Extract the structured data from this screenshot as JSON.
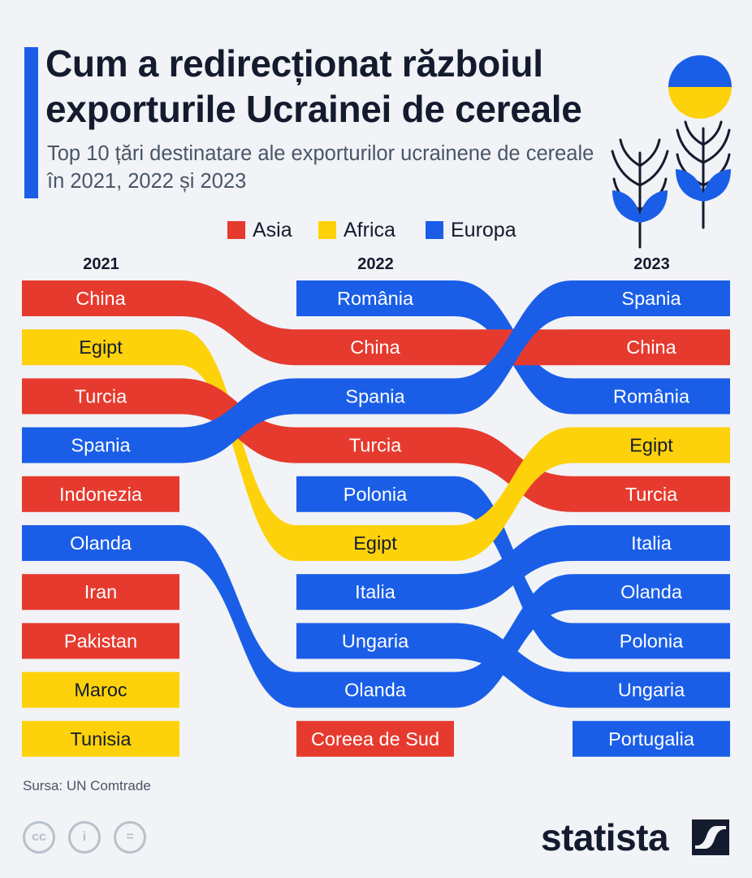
{
  "header": {
    "title": "Cum a redirecționat războiul exporturile Ucrainei de cereale",
    "subtitle": "Top 10 țări destinatare ale exporturilor ucrainene de cereale în 2021, 2022 și 2023"
  },
  "legend": [
    {
      "label": "Asia",
      "color": "#e63a2e"
    },
    {
      "label": "Africa",
      "color": "#fdd20a"
    },
    {
      "label": "Europa",
      "color": "#1a5ee8"
    }
  ],
  "chart_data": {
    "type": "bump",
    "years": [
      "2021",
      "2022",
      "2023"
    ],
    "region_colors": {
      "Asia": "#e63a2e",
      "Africa": "#fdd20a",
      "Europa": "#1a5ee8"
    },
    "rankings": {
      "2021": [
        "China",
        "Egipt",
        "Turcia",
        "Spania",
        "Indonezia",
        "Olanda",
        "Iran",
        "Pakistan",
        "Maroc",
        "Tunisia"
      ],
      "2022": [
        "România",
        "China",
        "Spania",
        "Turcia",
        "Polonia",
        "Egipt",
        "Italia",
        "Ungaria",
        "Olanda",
        "Coreea de Sud"
      ],
      "2023": [
        "Spania",
        "China",
        "România",
        "Egipt",
        "Turcia",
        "Italia",
        "Olanda",
        "Polonia",
        "Ungaria",
        "Portugalia"
      ]
    },
    "regions": {
      "China": "Asia",
      "Turcia": "Asia",
      "Indonezia": "Asia",
      "Iran": "Asia",
      "Pakistan": "Asia",
      "Coreea de Sud": "Asia",
      "Egipt": "Africa",
      "Maroc": "Africa",
      "Tunisia": "Africa",
      "Spania": "Europa",
      "Olanda": "Europa",
      "România": "Europa",
      "Polonia": "Europa",
      "Italia": "Europa",
      "Ungaria": "Europa",
      "Portugalia": "Europa"
    }
  },
  "footer": {
    "source": "Sursa: UN Comtrade",
    "brand": "statista",
    "license_icons": [
      "cc-icon",
      "attribution-icon",
      "noderivatives-icon"
    ]
  }
}
